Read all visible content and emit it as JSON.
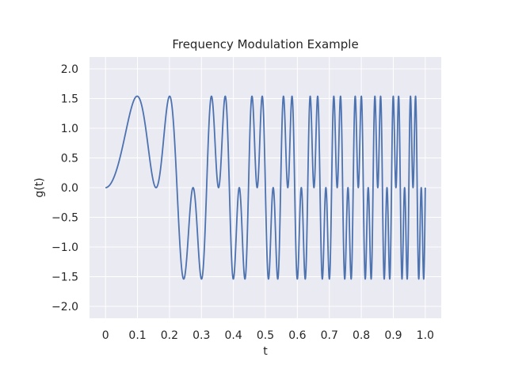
{
  "chart_data": {
    "type": "line",
    "title": "Frequency Modulation Example",
    "xlabel": "t",
    "ylabel": "g(t)",
    "xlim": [
      -0.05,
      1.05
    ],
    "ylim": [
      -2.2,
      2.2
    ],
    "xticks": [
      0,
      0.1,
      0.2,
      0.3,
      0.4,
      0.5,
      0.6,
      0.7,
      0.8,
      0.9,
      1.0
    ],
    "xtick_labels": [
      "0",
      "0.1",
      "0.2",
      "0.3",
      "0.4",
      "0.5",
      "0.6",
      "0.7",
      "0.8",
      "0.9",
      "1.0"
    ],
    "yticks": [
      -2.0,
      -1.5,
      -1.0,
      -0.5,
      0.0,
      0.5,
      1.0,
      1.5,
      2.0
    ],
    "ytick_labels": [
      "−2.0",
      "−1.5",
      "−1.0",
      "−0.5",
      "0.0",
      "0.5",
      "1.0",
      "1.5",
      "2.0"
    ],
    "grid": true,
    "series": [
      {
        "function": "g(t) = sin(2π·10·t²) + sin(2π·30·t²)",
        "x_range": [
          0,
          1
        ],
        "samples": 4000,
        "color": "#4c72b0"
      }
    ],
    "colors": {
      "plot_background": "#eaeaf2",
      "grid": "#ffffff",
      "line": "#4c72b0",
      "text": "#262626"
    }
  }
}
